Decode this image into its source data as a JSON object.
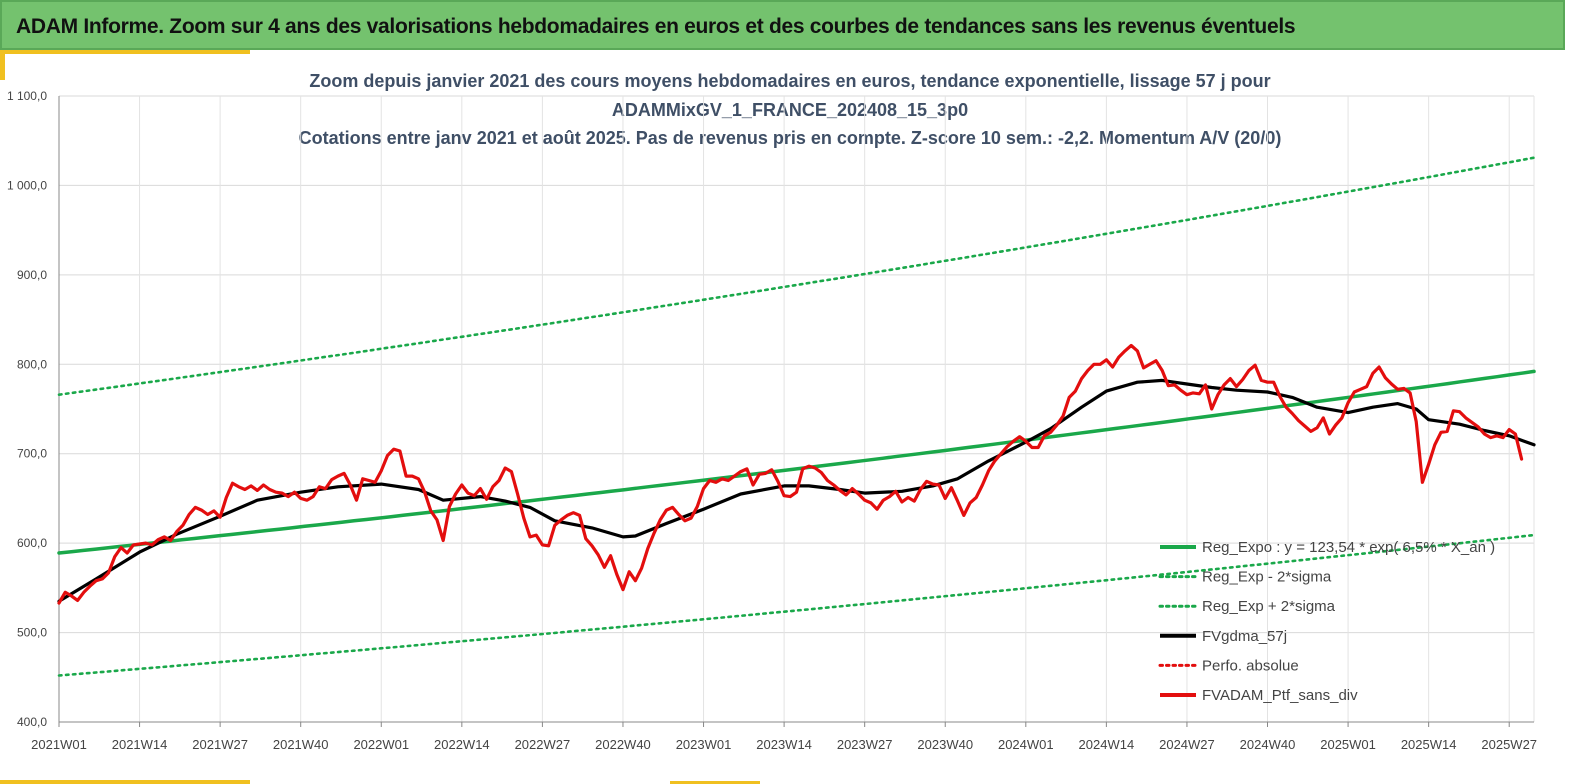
{
  "header": {
    "title": "ADAM Informe. Zoom sur 4 ans des valorisations hebdomadaires en euros et des courbes de tendances sans les revenus éventuels"
  },
  "colors": {
    "header_bg": "#74c26e",
    "accent": "#f0c020",
    "regression": "#1aa84a",
    "bands": "#1aa84a",
    "smoothed": "#000000",
    "portfolio": "#e30e0e",
    "perfo": "#e30e0e",
    "title_text": "#3f4f66"
  },
  "chart_data": {
    "type": "line",
    "title_lines": [
      "Zoom depuis janvier 2021 des cours moyens hebdomadaires  en euros, tendance exponentielle, lissage 57 j pour",
      "ADAMMixGV_1_FRANCE_202408_15_3p0",
      "Cotations entre janv 2021 et août 2025. Pas de revenus pris en compte. Z-score 10 sem.: -2,2. Momentum A/V (20/0)"
    ],
    "ylim": [
      400,
      1100
    ],
    "y_ticks": [
      "400,0",
      "500,0",
      "600,0",
      "700,0",
      "800,0",
      "900,0",
      "1 000,0",
      "1 100,0"
    ],
    "y_tick_values": [
      400,
      500,
      600,
      700,
      800,
      900,
      1000,
      1100
    ],
    "x_range_weeks": [
      0,
      238
    ],
    "x_ticks": [
      "2021W01",
      "2021W14",
      "2021W27",
      "2021W40",
      "2022W01",
      "2022W14",
      "2022W27",
      "2022W40",
      "2023W01",
      "2023W14",
      "2023W27",
      "2023W40",
      "2024W01",
      "2024W14",
      "2024W27",
      "2024W40",
      "2025W01",
      "2025W14",
      "2025W27"
    ],
    "x_tick_weeks": [
      0,
      13,
      26,
      39,
      52,
      65,
      78,
      91,
      104,
      117,
      130,
      143,
      156,
      169,
      182,
      195,
      208,
      221,
      234
    ],
    "grid": true,
    "legend_position": "bottom-right",
    "legend": [
      {
        "label": "Reg_Expo : y = 123,54 * exp( 6,5% * X_an )",
        "style": "solid-green"
      },
      {
        "label": "Reg_Exp - 2*sigma",
        "style": "dotted-green"
      },
      {
        "label": "Reg_Exp + 2*sigma",
        "style": "dotted-green"
      },
      {
        "label": "FVgdma_57j",
        "style": "solid-black"
      },
      {
        "label": "Perfo. absolue",
        "style": "dotted-red"
      },
      {
        "label": "FVADAM_Ptf_sans_div",
        "style": "solid-red"
      }
    ],
    "series": [
      {
        "name": "Reg_Expo : y = 123,54 * exp( 6,5% * X_an )",
        "points": [
          [
            0,
            589
          ],
          [
            238,
            792
          ]
        ]
      },
      {
        "name": "Reg_Exp - 2*sigma",
        "points": [
          [
            0,
            452
          ],
          [
            238,
            609
          ]
        ]
      },
      {
        "name": "Reg_Exp + 2*sigma",
        "points": [
          [
            0,
            766
          ],
          [
            238,
            1031
          ]
        ]
      },
      {
        "name": "FVgdma_57j",
        "points": [
          [
            0,
            535
          ],
          [
            6,
            560
          ],
          [
            13,
            590
          ],
          [
            19,
            610
          ],
          [
            26,
            630
          ],
          [
            32,
            648
          ],
          [
            39,
            657
          ],
          [
            45,
            663
          ],
          [
            52,
            666
          ],
          [
            58,
            660
          ],
          [
            62,
            648
          ],
          [
            68,
            652
          ],
          [
            72,
            647
          ],
          [
            76,
            640
          ],
          [
            80,
            625
          ],
          [
            86,
            617
          ],
          [
            91,
            607
          ],
          [
            93,
            608
          ],
          [
            98,
            622
          ],
          [
            104,
            638
          ],
          [
            110,
            655
          ],
          [
            117,
            664
          ],
          [
            121,
            664
          ],
          [
            126,
            660
          ],
          [
            130,
            656
          ],
          [
            136,
            658
          ],
          [
            141,
            664
          ],
          [
            145,
            672
          ],
          [
            150,
            692
          ],
          [
            156,
            713
          ],
          [
            160,
            728
          ],
          [
            165,
            752
          ],
          [
            169,
            770
          ],
          [
            174,
            780
          ],
          [
            178,
            782
          ],
          [
            182,
            778
          ],
          [
            186,
            774
          ],
          [
            190,
            771
          ],
          [
            195,
            769
          ],
          [
            199,
            763
          ],
          [
            203,
            752
          ],
          [
            208,
            746
          ],
          [
            212,
            752
          ],
          [
            216,
            756
          ],
          [
            219,
            750
          ],
          [
            221,
            738
          ],
          [
            226,
            733
          ],
          [
            230,
            726
          ],
          [
            234,
            720
          ],
          [
            238,
            710
          ]
        ]
      },
      {
        "name": "FVADAM_Ptf_sans_div",
        "points": [
          [
            0,
            533
          ],
          [
            1,
            545
          ],
          [
            2,
            541
          ],
          [
            3,
            536
          ],
          [
            4,
            545
          ],
          [
            5,
            552
          ],
          [
            6,
            558
          ],
          [
            7,
            560
          ],
          [
            8,
            567
          ],
          [
            9,
            585
          ],
          [
            10,
            595
          ],
          [
            11,
            589
          ],
          [
            12,
            598
          ],
          [
            13,
            599
          ],
          [
            14,
            600
          ],
          [
            15,
            598
          ],
          [
            16,
            604
          ],
          [
            17,
            607
          ],
          [
            18,
            603
          ],
          [
            19,
            613
          ],
          [
            20,
            620
          ],
          [
            21,
            632
          ],
          [
            22,
            640
          ],
          [
            23,
            637
          ],
          [
            24,
            632
          ],
          [
            25,
            636
          ],
          [
            26,
            629
          ],
          [
            27,
            651
          ],
          [
            28,
            667
          ],
          [
            29,
            663
          ],
          [
            30,
            660
          ],
          [
            31,
            664
          ],
          [
            32,
            659
          ],
          [
            33,
            665
          ],
          [
            34,
            660
          ],
          [
            35,
            657
          ],
          [
            36,
            656
          ],
          [
            37,
            652
          ],
          [
            38,
            657
          ],
          [
            39,
            650
          ],
          [
            40,
            648
          ],
          [
            41,
            652
          ],
          [
            42,
            663
          ],
          [
            43,
            661
          ],
          [
            44,
            671
          ],
          [
            45,
            675
          ],
          [
            46,
            678
          ],
          [
            47,
            665
          ],
          [
            48,
            648
          ],
          [
            49,
            672
          ],
          [
            50,
            670
          ],
          [
            51,
            668
          ],
          [
            52,
            681
          ],
          [
            53,
            698
          ],
          [
            54,
            705
          ],
          [
            55,
            703
          ],
          [
            56,
            675
          ],
          [
            57,
            675
          ],
          [
            58,
            672
          ],
          [
            59,
            657
          ],
          [
            60,
            636
          ],
          [
            61,
            626
          ],
          [
            62,
            603
          ],
          [
            63,
            641
          ],
          [
            64,
            655
          ],
          [
            65,
            665
          ],
          [
            66,
            656
          ],
          [
            67,
            653
          ],
          [
            68,
            661
          ],
          [
            69,
            649
          ],
          [
            70,
            663
          ],
          [
            71,
            670
          ],
          [
            72,
            684
          ],
          [
            73,
            680
          ],
          [
            74,
            655
          ],
          [
            75,
            628
          ],
          [
            76,
            607
          ],
          [
            77,
            609
          ],
          [
            78,
            598
          ],
          [
            79,
            597
          ],
          [
            80,
            620
          ],
          [
            81,
            626
          ],
          [
            82,
            631
          ],
          [
            83,
            634
          ],
          [
            84,
            631
          ],
          [
            85,
            605
          ],
          [
            86,
            597
          ],
          [
            87,
            587
          ],
          [
            88,
            573
          ],
          [
            89,
            586
          ],
          [
            90,
            565
          ],
          [
            91,
            548
          ],
          [
            92,
            568
          ],
          [
            93,
            558
          ],
          [
            94,
            572
          ],
          [
            95,
            594
          ],
          [
            96,
            611
          ],
          [
            97,
            626
          ],
          [
            98,
            637
          ],
          [
            99,
            640
          ],
          [
            100,
            632
          ],
          [
            101,
            625
          ],
          [
            102,
            628
          ],
          [
            103,
            641
          ],
          [
            104,
            661
          ],
          [
            105,
            670
          ],
          [
            106,
            668
          ],
          [
            107,
            672
          ],
          [
            108,
            670
          ],
          [
            109,
            675
          ],
          [
            110,
            680
          ],
          [
            111,
            683
          ],
          [
            112,
            665
          ],
          [
            113,
            677
          ],
          [
            114,
            678
          ],
          [
            115,
            682
          ],
          [
            116,
            669
          ],
          [
            117,
            653
          ],
          [
            118,
            652
          ],
          [
            119,
            657
          ],
          [
            120,
            683
          ],
          [
            121,
            686
          ],
          [
            122,
            684
          ],
          [
            123,
            679
          ],
          [
            124,
            670
          ],
          [
            125,
            665
          ],
          [
            126,
            659
          ],
          [
            127,
            654
          ],
          [
            128,
            661
          ],
          [
            129,
            655
          ],
          [
            130,
            648
          ],
          [
            131,
            645
          ],
          [
            132,
            638
          ],
          [
            133,
            648
          ],
          [
            134,
            652
          ],
          [
            135,
            658
          ],
          [
            136,
            646
          ],
          [
            137,
            651
          ],
          [
            138,
            647
          ],
          [
            139,
            660
          ],
          [
            140,
            669
          ],
          [
            141,
            666
          ],
          [
            142,
            665
          ],
          [
            143,
            650
          ],
          [
            144,
            662
          ],
          [
            145,
            647
          ],
          [
            146,
            631
          ],
          [
            147,
            645
          ],
          [
            148,
            651
          ],
          [
            149,
            665
          ],
          [
            150,
            681
          ],
          [
            151,
            692
          ],
          [
            152,
            700
          ],
          [
            153,
            708
          ],
          [
            154,
            714
          ],
          [
            155,
            719
          ],
          [
            156,
            714
          ],
          [
            157,
            707
          ],
          [
            158,
            707
          ],
          [
            159,
            720
          ],
          [
            160,
            724
          ],
          [
            161,
            732
          ],
          [
            162,
            742
          ],
          [
            163,
            763
          ],
          [
            164,
            770
          ],
          [
            165,
            784
          ],
          [
            166,
            793
          ],
          [
            167,
            800
          ],
          [
            168,
            800
          ],
          [
            169,
            805
          ],
          [
            170,
            797
          ],
          [
            171,
            808
          ],
          [
            172,
            815
          ],
          [
            173,
            821
          ],
          [
            174,
            815
          ],
          [
            175,
            796
          ],
          [
            176,
            800
          ],
          [
            177,
            804
          ],
          [
            178,
            793
          ],
          [
            179,
            776
          ],
          [
            180,
            777
          ],
          [
            181,
            771
          ],
          [
            182,
            766
          ],
          [
            183,
            768
          ],
          [
            184,
            767
          ],
          [
            185,
            777
          ],
          [
            186,
            750
          ],
          [
            187,
            766
          ],
          [
            188,
            777
          ],
          [
            189,
            784
          ],
          [
            190,
            775
          ],
          [
            191,
            783
          ],
          [
            192,
            793
          ],
          [
            193,
            799
          ],
          [
            194,
            782
          ],
          [
            195,
            780
          ],
          [
            196,
            780
          ],
          [
            197,
            764
          ],
          [
            198,
            752
          ],
          [
            199,
            745
          ],
          [
            200,
            737
          ],
          [
            201,
            731
          ],
          [
            202,
            725
          ],
          [
            203,
            729
          ],
          [
            204,
            740
          ],
          [
            205,
            722
          ],
          [
            206,
            732
          ],
          [
            207,
            740
          ],
          [
            208,
            757
          ],
          [
            209,
            769
          ],
          [
            210,
            772
          ],
          [
            211,
            775
          ],
          [
            212,
            790
          ],
          [
            213,
            797
          ],
          [
            214,
            785
          ],
          [
            215,
            778
          ],
          [
            216,
            772
          ],
          [
            217,
            773
          ],
          [
            218,
            768
          ],
          [
            219,
            736
          ],
          [
            220,
            668
          ],
          [
            221,
            688
          ],
          [
            222,
            710
          ],
          [
            223,
            724
          ],
          [
            224,
            725
          ],
          [
            225,
            748
          ],
          [
            226,
            747
          ],
          [
            227,
            740
          ],
          [
            228,
            735
          ],
          [
            229,
            730
          ],
          [
            230,
            722
          ],
          [
            231,
            718
          ],
          [
            232,
            720
          ],
          [
            233,
            718
          ],
          [
            234,
            727
          ],
          [
            235,
            722
          ],
          [
            236,
            694
          ]
        ]
      }
    ]
  }
}
